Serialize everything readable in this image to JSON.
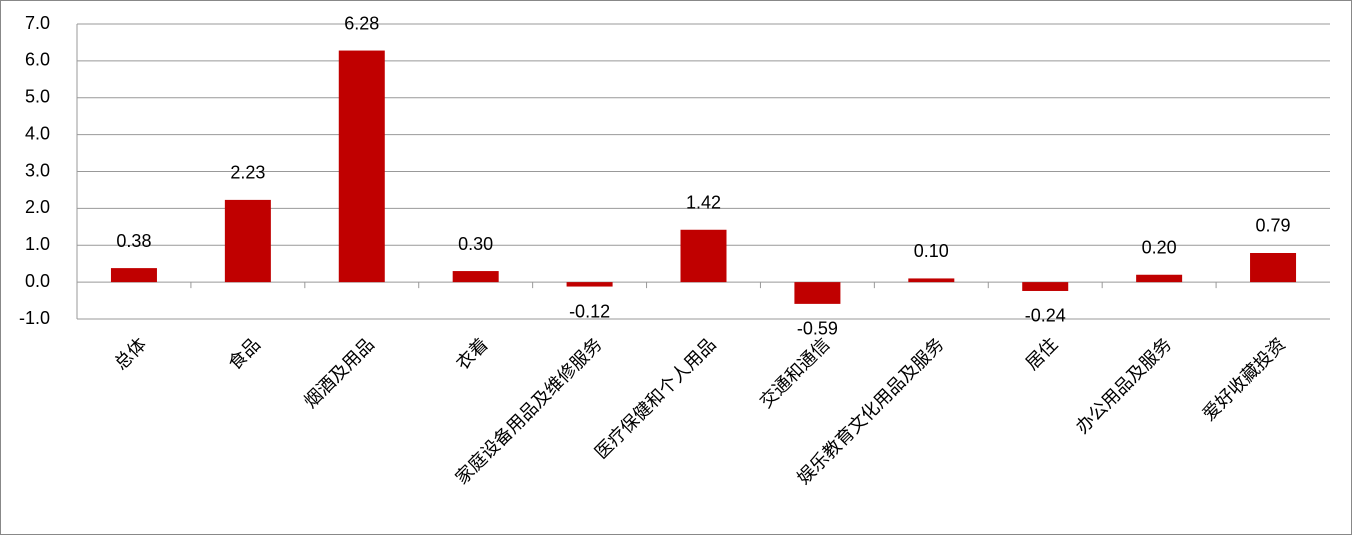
{
  "chart_data": {
    "type": "bar",
    "categories": [
      "总体",
      "食品",
      "烟酒及用品",
      "衣着",
      "家庭设备用品及维修服务",
      "医疗保健和个人用品",
      "交通和通信",
      "娱乐教育文化用品及服务",
      "居住",
      "办公用品及服务",
      "爱好收藏投资"
    ],
    "values": [
      0.38,
      2.23,
      6.28,
      0.3,
      -0.12,
      1.42,
      -0.59,
      0.1,
      -0.24,
      0.2,
      0.79
    ],
    "value_labels": [
      "0.38",
      "2.23",
      "6.28",
      "0.30",
      "-0.12",
      "1.42",
      "-0.59",
      "0.10",
      "-0.24",
      "0.20",
      "0.79"
    ],
    "color": "#c00000",
    "ylim": [
      -1,
      7
    ],
    "yticks": [
      {
        "value": -1,
        "label": "-1.0"
      },
      {
        "value": 0,
        "label": "0.0"
      },
      {
        "value": 1,
        "label": "1.0"
      },
      {
        "value": 2,
        "label": "2.0"
      },
      {
        "value": 3,
        "label": "3.0"
      },
      {
        "value": 4,
        "label": "4.0"
      },
      {
        "value": 5,
        "label": "5.0"
      },
      {
        "value": 6,
        "label": "6.0"
      },
      {
        "value": 7,
        "label": "7.0"
      }
    ],
    "grid": true
  }
}
